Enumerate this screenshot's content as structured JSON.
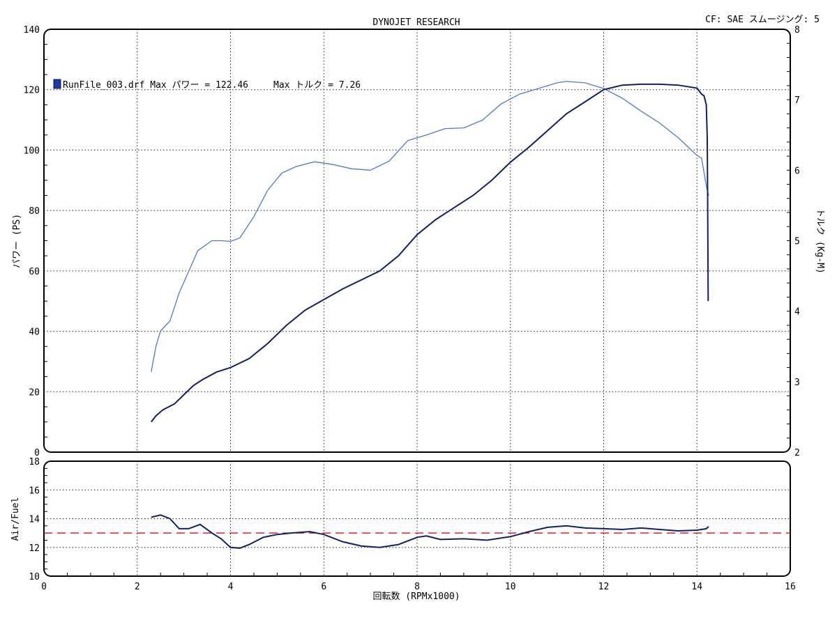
{
  "header": {
    "title": "DYNOJET RESEARCH",
    "cf_info": "CF: SAE スムージング: 5"
  },
  "legend": {
    "run_text": "RunFile_003.drf Max パワー = 122.46",
    "torque_text": "Max トルク = 7.26"
  },
  "colors": {
    "power": "#4a78d6",
    "torque": "#0d1f6e",
    "afr": "#102070",
    "target": "#e02020",
    "grid": "#222222",
    "legend_swatch": "#1a3bb0"
  },
  "chart_data": [
    {
      "type": "line",
      "title": "DYNOJET RESEARCH",
      "xlabel": "回転数 (RPMx1000)",
      "ylabel": "パワー (PS)",
      "y2label": "トルク (Kg-M)",
      "xlim": [
        0,
        16
      ],
      "ylim": [
        0,
        140
      ],
      "y2lim": [
        2,
        8
      ],
      "xticks": [
        "0",
        "2",
        "4",
        "6",
        "8",
        "10",
        "12",
        "14",
        "16"
      ],
      "yticks": [
        "0",
        "20",
        "40",
        "60",
        "80",
        "100",
        "120",
        "140"
      ],
      "y2ticks": [
        "2",
        "3",
        "4",
        "5",
        "6",
        "7",
        "8"
      ],
      "grid": true,
      "series": [
        {
          "axis": "left",
          "x": [
            2.3,
            2.4,
            2.55,
            2.8,
            3.0,
            3.2,
            3.4,
            3.7,
            4.0,
            4.4,
            4.8,
            5.2,
            5.6,
            6.0,
            6.4,
            6.8,
            7.2,
            7.6,
            8.0,
            8.4,
            8.8,
            9.2,
            9.6,
            10.0,
            10.4,
            10.8,
            11.2,
            11.6,
            12.0,
            12.4,
            12.8,
            13.2,
            13.6,
            14.0,
            14.1,
            14.15,
            14.2,
            14.22,
            14.23,
            14.24
          ],
          "y": [
            10,
            12,
            14,
            16,
            19,
            22,
            24,
            26.5,
            28,
            31,
            36,
            42,
            47,
            50.5,
            54,
            57,
            60,
            65,
            72,
            77,
            81,
            85,
            90,
            96,
            101,
            106.5,
            112,
            116,
            120,
            121.5,
            121.8,
            121.8,
            121.5,
            120.5,
            118.5,
            118,
            115,
            104,
            82,
            50
          ]
        },
        {
          "axis": "right",
          "x": [
            2.3,
            2.4,
            2.5,
            2.7,
            2.9,
            3.1,
            3.3,
            3.6,
            3.8,
            4.0,
            4.2,
            4.5,
            4.8,
            5.1,
            5.4,
            5.8,
            6.2,
            6.6,
            7.0,
            7.4,
            7.8,
            8.2,
            8.6,
            9.0,
            9.4,
            9.8,
            10.2,
            10.6,
            11.0,
            11.2,
            11.6,
            12.0,
            12.4,
            12.8,
            13.2,
            13.6,
            14.0,
            14.1,
            14.2,
            14.25
          ],
          "y": [
            3.14,
            3.5,
            3.72,
            3.86,
            4.26,
            4.56,
            4.86,
            5.0,
            5.0,
            4.99,
            5.04,
            5.34,
            5.72,
            5.96,
            6.05,
            6.12,
            6.08,
            6.02,
            6.0,
            6.13,
            6.42,
            6.5,
            6.59,
            6.6,
            6.71,
            6.94,
            7.08,
            7.16,
            7.24,
            7.26,
            7.24,
            7.16,
            7.02,
            6.84,
            6.67,
            6.46,
            6.21,
            6.17,
            5.78,
            5.64
          ]
        }
      ]
    },
    {
      "type": "line",
      "ylabel": "Air/Fuel",
      "xlim": [
        0,
        16
      ],
      "ylim": [
        10,
        18
      ],
      "xticks": [
        "0",
        "2",
        "4",
        "6",
        "8",
        "10",
        "12",
        "14",
        "16"
      ],
      "yticks": [
        "10",
        "12",
        "14",
        "16",
        "18"
      ],
      "grid": true,
      "target": 13.0,
      "series": [
        {
          "x": [
            2.3,
            2.5,
            2.7,
            2.9,
            3.1,
            3.35,
            3.6,
            3.8,
            4.0,
            4.2,
            4.4,
            4.7,
            5.0,
            5.3,
            5.7,
            6.0,
            6.4,
            6.8,
            7.2,
            7.6,
            8.0,
            8.2,
            8.5,
            9.0,
            9.5,
            10.0,
            10.4,
            10.8,
            11.2,
            11.6,
            12.0,
            12.4,
            12.8,
            13.2,
            13.6,
            14.0,
            14.2,
            14.25
          ],
          "y": [
            14.1,
            14.25,
            14.0,
            13.3,
            13.3,
            13.6,
            13.0,
            12.6,
            12.0,
            11.95,
            12.2,
            12.7,
            12.9,
            13.0,
            13.1,
            12.9,
            12.4,
            12.1,
            12.0,
            12.2,
            12.7,
            12.8,
            12.55,
            12.6,
            12.5,
            12.75,
            13.1,
            13.4,
            13.5,
            13.35,
            13.3,
            13.25,
            13.35,
            13.25,
            13.15,
            13.2,
            13.3,
            13.45
          ]
        }
      ]
    }
  ]
}
